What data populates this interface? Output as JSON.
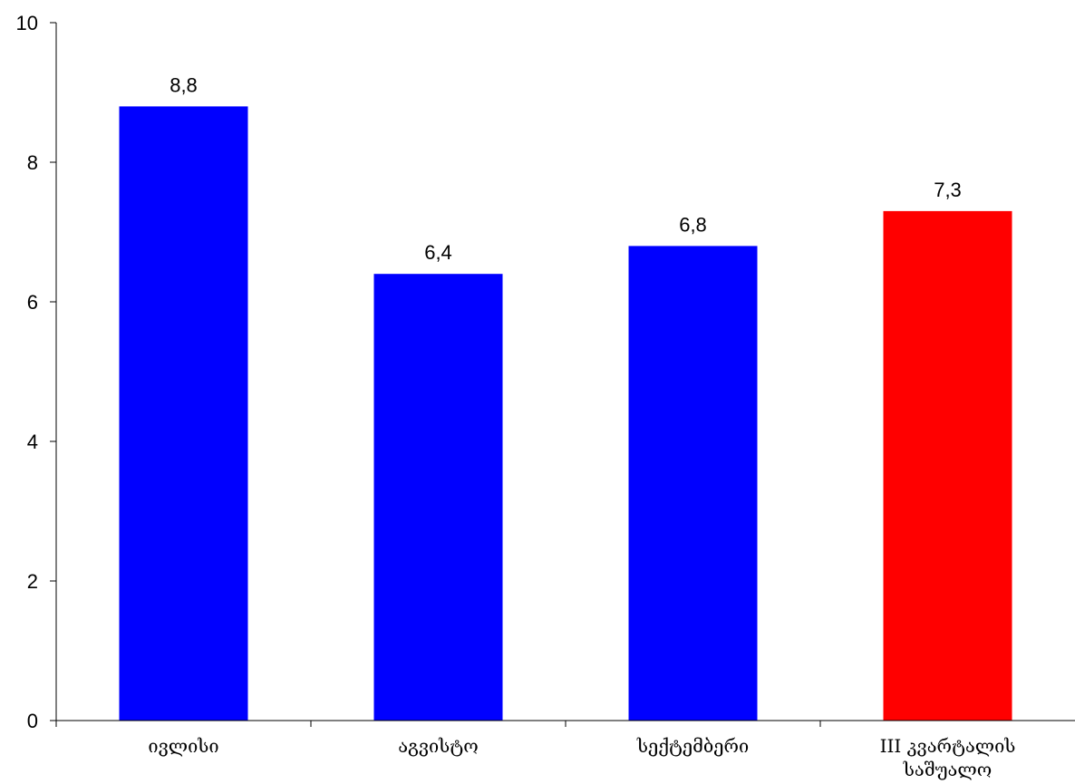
{
  "chart_data": {
    "type": "bar",
    "title": "",
    "xlabel": "",
    "ylabel": "",
    "categories": [
      [
        "ივლისი"
      ],
      [
        "აგვისტო"
      ],
      [
        "სექტემბერი"
      ],
      [
        "III  კვარტალის",
        "საშუალო"
      ]
    ],
    "values": [
      8.8,
      6.4,
      6.8,
      7.3
    ],
    "value_labels": [
      "8,8",
      "6,4",
      "6,8",
      "7,3"
    ],
    "bar_colors": [
      "#0000ff",
      "#0000ff",
      "#0000ff",
      "#ff0000"
    ],
    "ylim": [
      0,
      10
    ],
    "yticks": [
      0,
      2,
      4,
      6,
      8,
      10
    ],
    "ytick_labels": [
      "0",
      "2",
      "4",
      "6",
      "8",
      "10"
    ],
    "grid": false,
    "legend": "none"
  }
}
